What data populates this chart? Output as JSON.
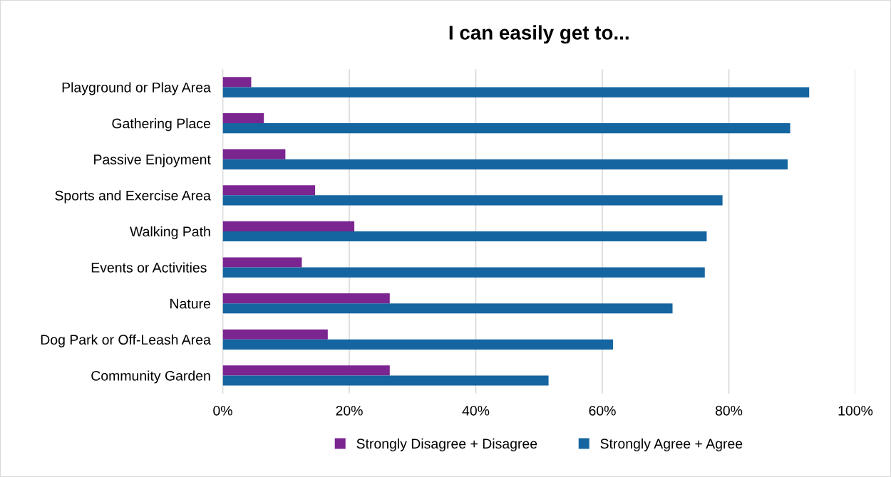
{
  "chart_data": {
    "type": "bar",
    "orientation": "horizontal",
    "title": "I can easily get to...",
    "categories": [
      "Playground or Play Area",
      "Gathering Place",
      "Passive Enjoyment",
      "Sports and Exercise Area",
      "Walking Path",
      "Events or Activities ",
      "Nature",
      "Dog Park or Off-Leash Area",
      "Community Garden"
    ],
    "series": [
      {
        "name": "Strongly Disagree + Disagree",
        "color": "#7b2590",
        "values": [
          4.5,
          6.5,
          9.9,
          14.6,
          20.8,
          12.5,
          26.4,
          16.6,
          26.4
        ]
      },
      {
        "name": "Strongly Agree + Agree",
        "color": "#1565a0",
        "values": [
          92.7,
          89.7,
          89.3,
          79.0,
          76.5,
          76.2,
          71.1,
          61.7,
          51.5
        ]
      }
    ],
    "xlim": [
      0,
      100
    ],
    "xticks": [
      {
        "value": 0,
        "label": "0%"
      },
      {
        "value": 20,
        "label": "20%"
      },
      {
        "value": 40,
        "label": "40%"
      },
      {
        "value": 60,
        "label": "60%"
      },
      {
        "value": 80,
        "label": "80%"
      },
      {
        "value": 100,
        "label": "100%"
      }
    ],
    "grid": "x",
    "legend": "bottom"
  }
}
